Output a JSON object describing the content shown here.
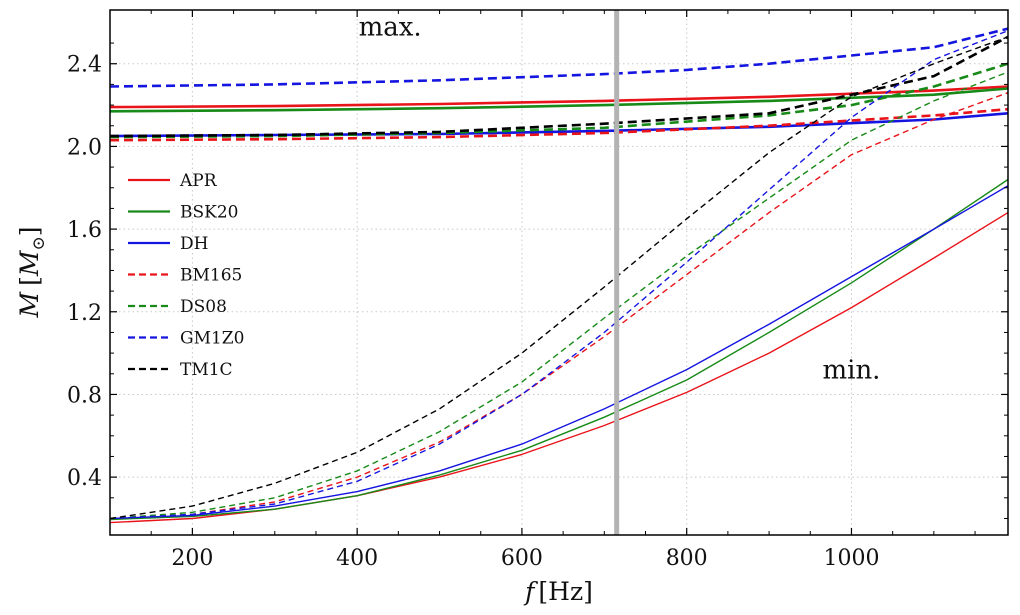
{
  "chart_data": {
    "type": "line",
    "xlabel_italic": "f",
    "xlabel_unit": "[Hz]",
    "ylabel_italic": "M",
    "ylabel_unit_open": "[",
    "ylabel_unit_symbol": "M",
    "ylabel_unit_sub": "⊙",
    "ylabel_unit_close": "]",
    "xlim": [
      100,
      1190
    ],
    "ylim": [
      0.12,
      2.66
    ],
    "xticks": [
      200,
      400,
      600,
      800,
      1000
    ],
    "yticks": [
      0.4,
      0.8,
      1.2,
      1.6,
      2.0,
      2.4
    ],
    "xtick_labels": [
      "200",
      "400",
      "600",
      "800",
      "1000"
    ],
    "ytick_labels": [
      "0.4",
      "0.8",
      "1.2",
      "1.6",
      "2.0",
      "2.4"
    ],
    "grid": true,
    "vertical_marker_x": 715,
    "vertical_marker_color": "#b3b3b3",
    "annotations": [
      {
        "text": "max.",
        "x": 440,
        "y": 2.58
      },
      {
        "text": "min.",
        "x": 1000,
        "y": 0.92
      }
    ],
    "legend_position": "left-center",
    "series": [
      {
        "name": "APR",
        "color": "#e8141a",
        "style": "solid",
        "kind": "max",
        "x": [
          100,
          300,
          500,
          700,
          900,
          1100,
          1190
        ],
        "y": [
          2.19,
          2.195,
          2.205,
          2.22,
          2.24,
          2.27,
          2.29
        ]
      },
      {
        "name": "BSK20",
        "color": "#178a17",
        "style": "solid",
        "kind": "max",
        "x": [
          100,
          300,
          500,
          700,
          900,
          1100,
          1190
        ],
        "y": [
          2.17,
          2.175,
          2.185,
          2.2,
          2.22,
          2.25,
          2.28
        ]
      },
      {
        "name": "DH",
        "color": "#1515e0",
        "style": "solid",
        "kind": "max",
        "x": [
          100,
          300,
          500,
          700,
          900,
          1100,
          1190
        ],
        "y": [
          2.05,
          2.055,
          2.06,
          2.075,
          2.095,
          2.13,
          2.16
        ]
      },
      {
        "name": "BM165",
        "color": "#e8141a",
        "style": "dashed",
        "kind": "max",
        "x": [
          100,
          300,
          500,
          700,
          900,
          1100,
          1190
        ],
        "y": [
          2.03,
          2.035,
          2.045,
          2.065,
          2.1,
          2.15,
          2.18
        ]
      },
      {
        "name": "DS08",
        "color": "#178a17",
        "style": "dashed",
        "kind": "max",
        "x": [
          100,
          300,
          500,
          700,
          900,
          1000,
          1100,
          1190
        ],
        "y": [
          2.045,
          2.05,
          2.065,
          2.09,
          2.15,
          2.2,
          2.29,
          2.4
        ]
      },
      {
        "name": "GM1Z0",
        "color": "#1515e0",
        "style": "dashed",
        "kind": "max",
        "x": [
          100,
          300,
          500,
          700,
          800,
          900,
          1000,
          1100,
          1190
        ],
        "y": [
          2.29,
          2.3,
          2.32,
          2.35,
          2.37,
          2.4,
          2.44,
          2.48,
          2.57
        ]
      },
      {
        "name": "TM1C",
        "color": "#000000",
        "style": "dashed",
        "kind": "max",
        "x": [
          100,
          300,
          500,
          700,
          900,
          1000,
          1100,
          1190
        ],
        "y": [
          2.05,
          2.055,
          2.07,
          2.11,
          2.16,
          2.25,
          2.34,
          2.53
        ]
      },
      {
        "name": "APR",
        "color": "#e8141a",
        "style": "solid",
        "kind": "min",
        "x": [
          100,
          200,
          300,
          400,
          500,
          600,
          700,
          800,
          900,
          1000,
          1100,
          1190
        ],
        "y": [
          0.18,
          0.2,
          0.245,
          0.31,
          0.4,
          0.51,
          0.65,
          0.81,
          1.0,
          1.22,
          1.46,
          1.68
        ]
      },
      {
        "name": "BSK20",
        "color": "#178a17",
        "style": "solid",
        "kind": "min",
        "x": [
          100,
          200,
          300,
          400,
          500,
          600,
          700,
          800,
          900,
          1000,
          1100,
          1190
        ],
        "y": [
          0.195,
          0.21,
          0.245,
          0.31,
          0.41,
          0.53,
          0.69,
          0.87,
          1.1,
          1.34,
          1.6,
          1.84
        ]
      },
      {
        "name": "DH",
        "color": "#1515e0",
        "style": "solid",
        "kind": "min",
        "x": [
          100,
          200,
          300,
          400,
          500,
          600,
          700,
          800,
          900,
          1000,
          1100,
          1190
        ],
        "y": [
          0.2,
          0.215,
          0.26,
          0.33,
          0.43,
          0.56,
          0.73,
          0.92,
          1.14,
          1.37,
          1.6,
          1.81
        ]
      },
      {
        "name": "BM165",
        "color": "#e8141a",
        "style": "dashed",
        "kind": "min",
        "x": [
          100,
          200,
          300,
          400,
          500,
          600,
          700,
          800,
          900,
          1000,
          1100,
          1190
        ],
        "y": [
          0.2,
          0.22,
          0.28,
          0.4,
          0.57,
          0.8,
          1.08,
          1.38,
          1.68,
          1.96,
          2.13,
          2.26
        ]
      },
      {
        "name": "DS08",
        "color": "#178a17",
        "style": "dashed",
        "kind": "min",
        "x": [
          100,
          200,
          300,
          400,
          500,
          600,
          700,
          800,
          900,
          1000,
          1100,
          1190
        ],
        "y": [
          0.2,
          0.23,
          0.3,
          0.43,
          0.62,
          0.86,
          1.17,
          1.47,
          1.75,
          2.03,
          2.22,
          2.36
        ]
      },
      {
        "name": "GM1Z0",
        "color": "#1515e0",
        "style": "dashed",
        "kind": "min",
        "x": [
          100,
          200,
          300,
          400,
          500,
          600,
          700,
          800,
          900,
          1000,
          1100,
          1190
        ],
        "y": [
          0.2,
          0.22,
          0.27,
          0.38,
          0.56,
          0.8,
          1.1,
          1.44,
          1.79,
          2.14,
          2.42,
          2.56
        ]
      },
      {
        "name": "TM1C",
        "color": "#000000",
        "style": "dashed",
        "kind": "min",
        "x": [
          100,
          200,
          300,
          400,
          500,
          600,
          700,
          800,
          900,
          1000,
          1100,
          1190
        ],
        "y": [
          0.2,
          0.26,
          0.37,
          0.52,
          0.73,
          1.0,
          1.32,
          1.65,
          1.97,
          2.24,
          2.4,
          2.53
        ]
      }
    ]
  }
}
